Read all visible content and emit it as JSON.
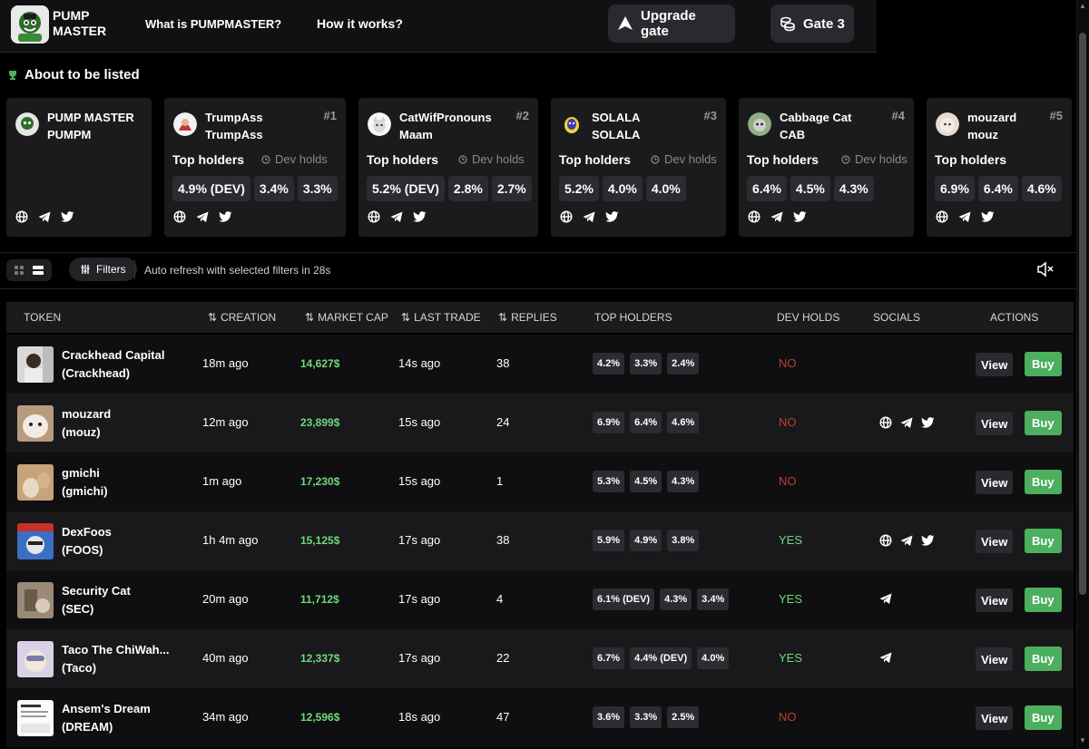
{
  "header": {
    "logo_text": "PUMP MASTER",
    "nav": [
      "What is PUMPMASTER?",
      "How it works?"
    ],
    "upgrade_label": "Upgrade gate",
    "gate_label": "Gate 3"
  },
  "listed": {
    "title": "About to be listed",
    "top_holders_label": "Top holders",
    "dev_holds_label": "Dev holds",
    "cards": [
      {
        "name": "PUMP MASTER",
        "ticker": "PUMPM",
        "rank": "",
        "holders": []
      },
      {
        "name": "TrumpAss",
        "ticker": "TrumpAss",
        "rank": "#1",
        "holders": [
          "4.9% (DEV)",
          "3.4%",
          "3.3%"
        ]
      },
      {
        "name": "CatWifPronouns",
        "ticker": "Maam",
        "rank": "#2",
        "holders": [
          "5.2% (DEV)",
          "2.8%",
          "2.7%"
        ]
      },
      {
        "name": "SOLALA",
        "ticker": "SOLALA",
        "rank": "#3",
        "holders": [
          "5.2%",
          "4.0%",
          "4.0%"
        ]
      },
      {
        "name": "Cabbage Cat",
        "ticker": "CAB",
        "rank": "#4",
        "holders": [
          "6.4%",
          "4.5%",
          "4.3%"
        ]
      },
      {
        "name": "mouzard",
        "ticker": "mouz",
        "rank": "#5",
        "holders": [
          "6.9%",
          "6.4%",
          "4.6%"
        ]
      }
    ]
  },
  "toolbar": {
    "filters_label": "Filters",
    "refresh_text": "Auto refresh with selected filters in 28s"
  },
  "table": {
    "columns": [
      "TOKEN",
      "CREATION",
      "MARKET CAP",
      "LAST TRADE",
      "REPLIES",
      "TOP HOLDERS",
      "DEV HOLDS",
      "SOCIALS",
      "ACTIONS"
    ],
    "view_label": "View",
    "buy_label": "Buy",
    "rows": [
      {
        "name": "Crackhead Capital",
        "ticker": "(Crackhead)",
        "creation": "18m ago",
        "mcap": "14,627$",
        "last_trade": "14s ago",
        "replies": "38",
        "holders": [
          "4.2%",
          "3.3%",
          "2.4%"
        ],
        "dev": "NO",
        "socials": []
      },
      {
        "name": "mouzard",
        "ticker": "(mouz)",
        "creation": "12m ago",
        "mcap": "23,899$",
        "last_trade": "15s ago",
        "replies": "24",
        "holders": [
          "6.9%",
          "6.4%",
          "4.6%"
        ],
        "dev": "NO",
        "socials": [
          "globe",
          "telegram",
          "twitter"
        ]
      },
      {
        "name": "gmichi",
        "ticker": "(gmichi)",
        "creation": "1m ago",
        "mcap": "17,230$",
        "last_trade": "15s ago",
        "replies": "1",
        "holders": [
          "5.3%",
          "4.5%",
          "4.3%"
        ],
        "dev": "NO",
        "socials": []
      },
      {
        "name": "DexFoos",
        "ticker": "(FOOS)",
        "creation": "1h 4m ago",
        "mcap": "15,125$",
        "last_trade": "17s ago",
        "replies": "38",
        "holders": [
          "5.9%",
          "4.9%",
          "3.8%"
        ],
        "dev": "YES",
        "socials": [
          "globe",
          "telegram",
          "twitter"
        ]
      },
      {
        "name": "Security Cat",
        "ticker": "(SEC)",
        "creation": "20m ago",
        "mcap": "11,712$",
        "last_trade": "17s ago",
        "replies": "4",
        "holders": [
          "6.1% (DEV)",
          "4.3%",
          "3.4%"
        ],
        "dev": "YES",
        "socials": [
          "telegram"
        ]
      },
      {
        "name": "Taco The ChiWah...",
        "ticker": "(Taco)",
        "creation": "40m ago",
        "mcap": "12,337$",
        "last_trade": "17s ago",
        "replies": "22",
        "holders": [
          "6.7%",
          "4.4% (DEV)",
          "4.0%"
        ],
        "dev": "YES",
        "socials": [
          "telegram"
        ]
      },
      {
        "name": "Ansem's Dream",
        "ticker": "(DREAM)",
        "creation": "34m ago",
        "mcap": "12,596$",
        "last_trade": "18s ago",
        "replies": "47",
        "holders": [
          "3.6%",
          "3.3%",
          "2.5%"
        ],
        "dev": "NO",
        "socials": []
      }
    ]
  },
  "colors": {
    "accent_green": "#4caf5e",
    "mcap_green": "#6fd97a",
    "no_red": "#c43b32",
    "panel": "#1b1b1e"
  }
}
